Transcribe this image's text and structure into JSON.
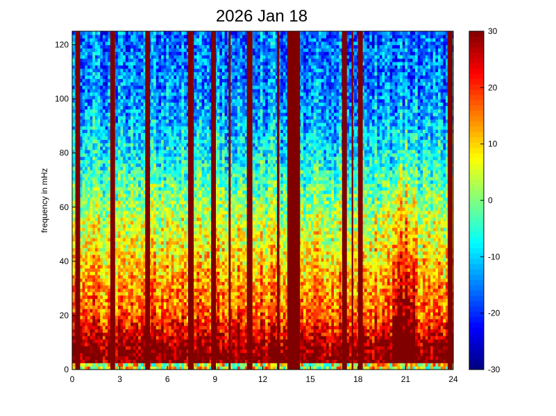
{
  "chart_data": {
    "type": "heatmap",
    "title": "2026 Jan 18",
    "xlabel": "",
    "ylabel": "frequency in mHz",
    "xlim": [
      0,
      24
    ],
    "ylim": [
      0,
      125
    ],
    "xticks": [
      "0",
      "3",
      "6",
      "9",
      "12",
      "15",
      "18",
      "21",
      "24"
    ],
    "yticks": [
      "0",
      "20",
      "40",
      "60",
      "80",
      "100",
      "120"
    ],
    "colormap": "jet",
    "clim": [
      -30,
      30
    ],
    "colorbar_ticks": [
      "30",
      "20",
      "10",
      "0",
      "-10",
      "-20",
      "-30"
    ],
    "grid": false,
    "background_profile": {
      "frequency_mHz": [
        0,
        2,
        4,
        10,
        20,
        40,
        60,
        80,
        100,
        125
      ],
      "level": [
        0,
        28,
        32,
        28,
        18,
        10,
        2,
        -8,
        -14,
        -16
      ]
    },
    "saturated_bands_hours": [
      [
        0.2,
        0.5
      ],
      [
        2.4,
        2.7
      ],
      [
        4.6,
        4.9
      ],
      [
        7.3,
        7.65
      ],
      [
        8.75,
        9.05
      ],
      [
        9.85,
        9.98
      ],
      [
        11.0,
        11.35
      ],
      [
        12.9,
        13.05
      ],
      [
        13.55,
        14.35
      ],
      [
        17.0,
        17.3
      ],
      [
        17.6,
        17.7
      ],
      [
        18.0,
        18.3
      ],
      [
        23.65,
        23.95
      ]
    ],
    "enhanced_interval_hours": [
      20.1,
      21.6
    ]
  }
}
